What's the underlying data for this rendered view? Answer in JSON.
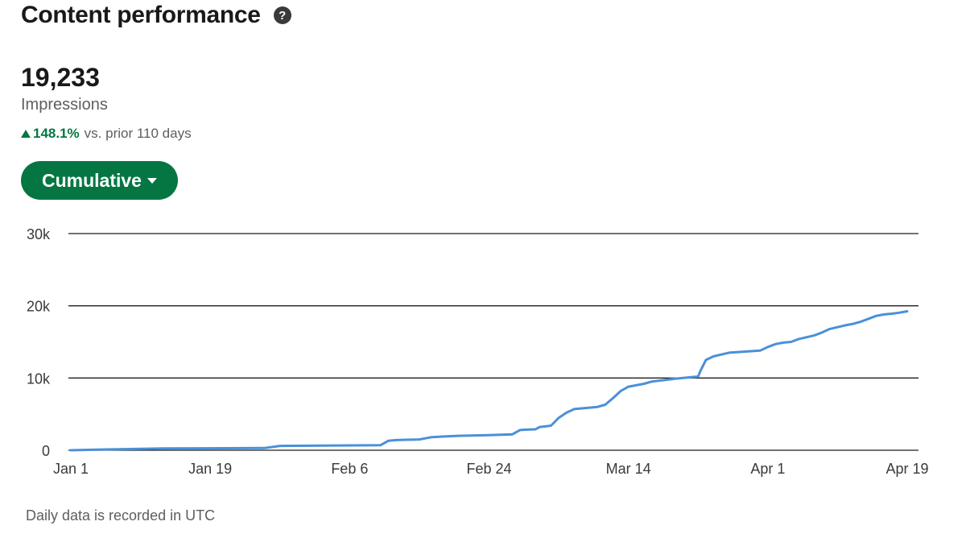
{
  "header": {
    "title": "Content performance",
    "help_icon": "help-icon",
    "help_glyph": "?"
  },
  "metric": {
    "value": "19,233",
    "label": "Impressions",
    "change": "148.1%",
    "change_suffix": "vs. prior 110 days",
    "change_direction_icon": "triangle-up-icon",
    "change_color": "#057642"
  },
  "view_selector": {
    "label": "Cumulative",
    "icon": "caret-down-icon",
    "color": "#057642"
  },
  "footnote": "Daily data is recorded in UTC",
  "chart_data": {
    "type": "line",
    "title": "",
    "xlabel": "",
    "ylabel": "",
    "x_tick_labels": [
      "Jan 1",
      "Jan 19",
      "Feb 6",
      "Feb 24",
      "Mar 14",
      "Apr 1",
      "Apr 19"
    ],
    "x_tick_days": [
      0,
      18,
      36,
      54,
      72,
      90,
      108
    ],
    "y_tick_labels": [
      "0",
      "10k",
      "20k",
      "30k"
    ],
    "y_tick_values": [
      0,
      10000,
      20000,
      30000
    ],
    "ylim": [
      0,
      30000
    ],
    "grid": "horizontal",
    "line_color": "#4a90d9",
    "series": [
      {
        "x_day": [
          0,
          4,
          12,
          25,
          27,
          40,
          41,
          42,
          45,
          46,
          46.5,
          48,
          50,
          54,
          57,
          58,
          59,
          60,
          60.5,
          62,
          63,
          64,
          65,
          68,
          69,
          70,
          71,
          72,
          74,
          75,
          78,
          80,
          81,
          81.3,
          82,
          83,
          85,
          89,
          90,
          91,
          92,
          93,
          94,
          96,
          97,
          98,
          100,
          101,
          102,
          103,
          104,
          105,
          106,
          107,
          108
        ],
        "y": [
          0,
          100,
          250,
          300,
          600,
          700,
          1300,
          1400,
          1500,
          1700,
          1800,
          1900,
          2000,
          2100,
          2200,
          2800,
          2850,
          2900,
          3200,
          3400,
          4500,
          5200,
          5700,
          6000,
          6300,
          7200,
          8200,
          8800,
          9200,
          9500,
          9900,
          10100,
          10200,
          11000,
          12500,
          13000,
          13500,
          13800,
          14300,
          14700,
          14900,
          15000,
          15400,
          15900,
          16300,
          16800,
          17300,
          17500,
          17800,
          18200,
          18600,
          18800,
          18900,
          19050,
          19233
        ]
      }
    ]
  }
}
